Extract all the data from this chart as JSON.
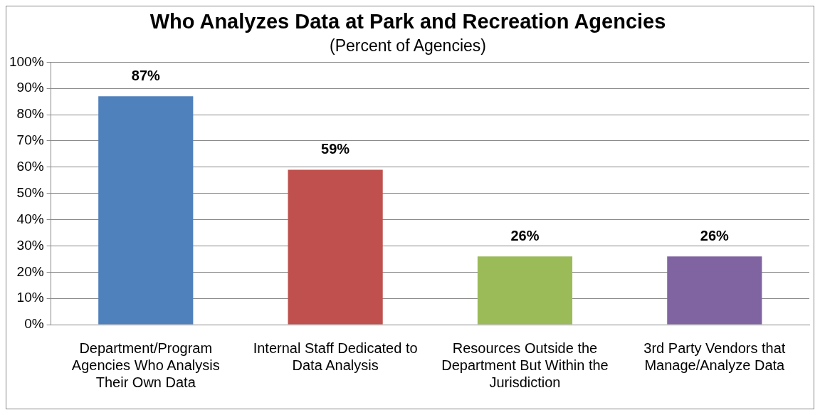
{
  "chart_data": {
    "type": "bar",
    "title": "Who Analyzes Data at Park and Recreation Agencies",
    "subtitle": "(Percent of Agencies)",
    "categories": [
      "Department/Program Agencies Who Analysis Their Own Data",
      "Internal Staff Dedicated to Data Analysis",
      "Resources Outside the Department But Within the Jurisdiction",
      "3rd Party Vendors that Manage/Analyze Data"
    ],
    "values": [
      87,
      59,
      26,
      26
    ],
    "colors": [
      "#4f81bd",
      "#c0504d",
      "#9bbb59",
      "#8064a2"
    ],
    "value_labels": [
      "87%",
      "59%",
      "26%",
      "26%"
    ],
    "ylim": [
      0,
      100
    ],
    "yticks": [
      {
        "value": 0,
        "label": "0%"
      },
      {
        "value": 10,
        "label": "10%"
      },
      {
        "value": 20,
        "label": "20%"
      },
      {
        "value": 30,
        "label": "30%"
      },
      {
        "value": 40,
        "label": "40%"
      },
      {
        "value": 50,
        "label": "50%"
      },
      {
        "value": 60,
        "label": "60%"
      },
      {
        "value": 70,
        "label": "70%"
      },
      {
        "value": 80,
        "label": "80%"
      },
      {
        "value": 90,
        "label": "90%"
      },
      {
        "value": 100,
        "label": "100%"
      }
    ],
    "grid": "y",
    "legend": false
  }
}
